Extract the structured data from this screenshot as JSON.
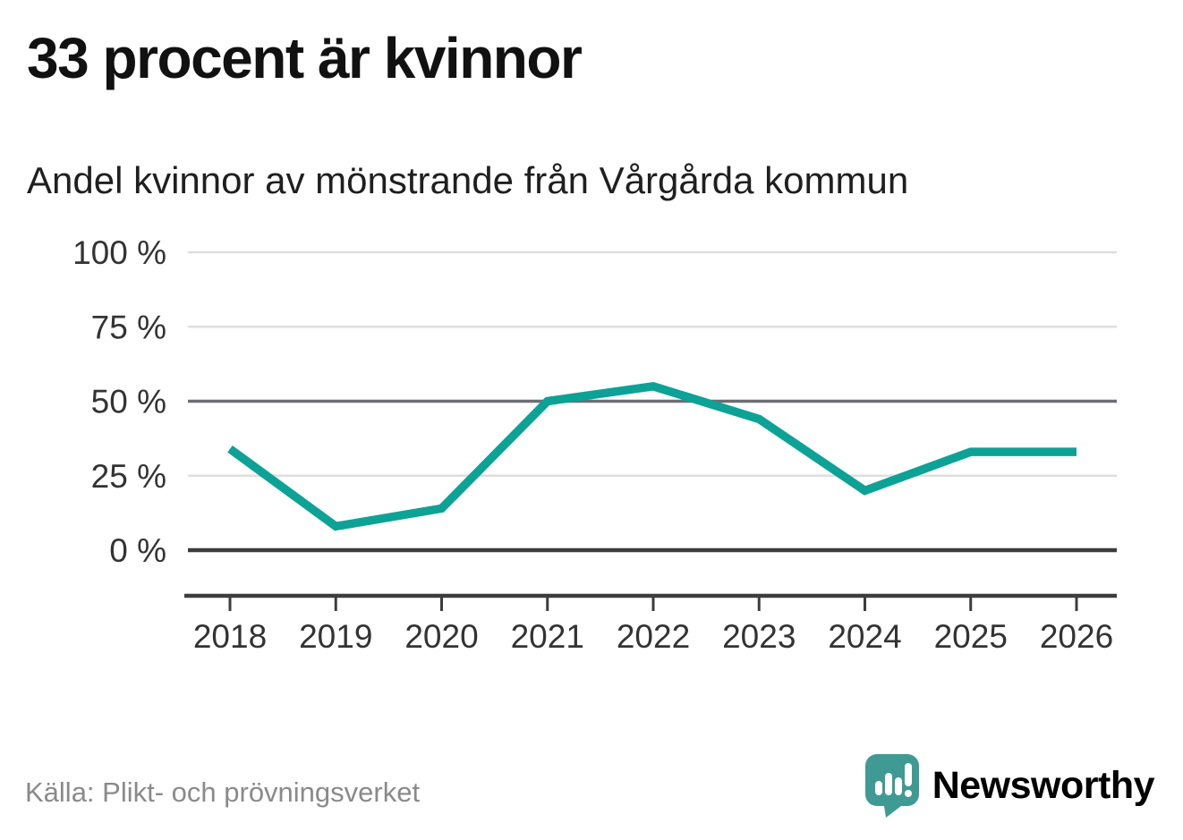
{
  "header": {
    "title": "33 procent är kvinnor",
    "subtitle": "Andel kvinnor av mönstrande från Vårgårda kommun"
  },
  "footer": {
    "source": "Källa: Plikt- och prövningsverket",
    "brand": "Newsworthy"
  },
  "colors": {
    "line": "#0DA296",
    "brand": "#3F9A94",
    "grid_light": "#DEDEDE",
    "grid_mid": "#6D6D74",
    "axis_dark": "#3D3D3D",
    "tick_text": "#333333",
    "source_gray": "#8A8A8A"
  },
  "chart_data": {
    "type": "line",
    "title": "33 procent är kvinnor",
    "subtitle": "Andel kvinnor av mönstrande från Vårgårda kommun",
    "series_name": "Andel kvinnor av mönstrande",
    "unit": "%",
    "x": [
      2018,
      2019,
      2020,
      2021,
      2022,
      2023,
      2024,
      2025,
      2026
    ],
    "values": [
      34,
      8,
      14,
      50,
      55,
      44,
      20,
      33,
      33
    ],
    "ylim": [
      0,
      100
    ],
    "yticks": [
      0,
      25,
      50,
      75,
      100
    ],
    "ytick_labels": [
      "0 %",
      "25 %",
      "50 %",
      "75 %",
      "100 %"
    ],
    "xtick_labels": [
      "2018",
      "2019",
      "2020",
      "2021",
      "2022",
      "2023",
      "2024",
      "2025",
      "2026"
    ],
    "grid": true,
    "legend": "none",
    "source": "Källa: Plikt- och prövningsverket"
  }
}
